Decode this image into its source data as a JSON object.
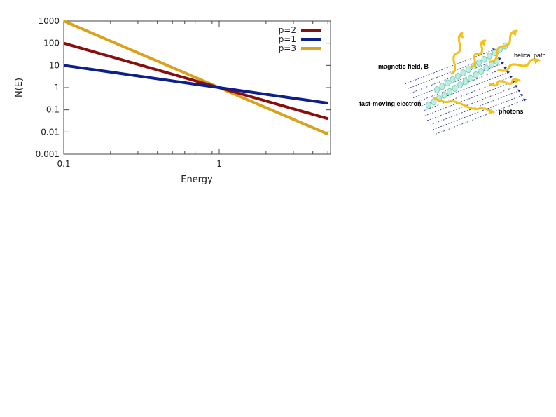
{
  "chart_data": {
    "type": "line",
    "xlabel": "Energy",
    "ylabel": "N(E)",
    "xscale": "log",
    "yscale": "log",
    "xlim": [
      0.1,
      5
    ],
    "ylim": [
      0.001,
      1000
    ],
    "x_ticks": [
      {
        "value": 0.1,
        "label": "0.1"
      },
      {
        "value": 1,
        "label": "1"
      }
    ],
    "y_ticks": [
      {
        "value": 1000,
        "label": "1000"
      },
      {
        "value": 100,
        "label": "100"
      },
      {
        "value": 10,
        "label": "10"
      },
      {
        "value": 1,
        "label": "1"
      },
      {
        "value": 0.1,
        "label": "0.1"
      },
      {
        "value": 0.01,
        "label": "0.01"
      },
      {
        "value": 0.001,
        "label": "0.001"
      }
    ],
    "grid": false,
    "legend_position": "top-right",
    "series": [
      {
        "name": "p=2",
        "color": "#8b0e0e",
        "x": [
          0.1,
          1,
          5
        ],
        "y": [
          100,
          1,
          0.04
        ]
      },
      {
        "name": "p=1",
        "color": "#0d1f8a",
        "x": [
          0.1,
          1,
          5
        ],
        "y": [
          10,
          1,
          0.2
        ]
      },
      {
        "name": "p=3",
        "color": "#d8a21c",
        "x": [
          0.1,
          1,
          5
        ],
        "y": [
          1000,
          1,
          0.008
        ]
      }
    ]
  },
  "diagram": {
    "labels": {
      "magnetic_field": "magnetic field, B",
      "helical_path": "helical path",
      "electron": "fast-moving electron",
      "photons": "photons"
    },
    "colors": {
      "field": "#1b2a8a",
      "helix": "#7ad0b8",
      "photon": "#f2c21b",
      "helical_label": "#d4603a",
      "electron_label": "#b5c93a",
      "photons_label": "#e2a23a"
    }
  }
}
